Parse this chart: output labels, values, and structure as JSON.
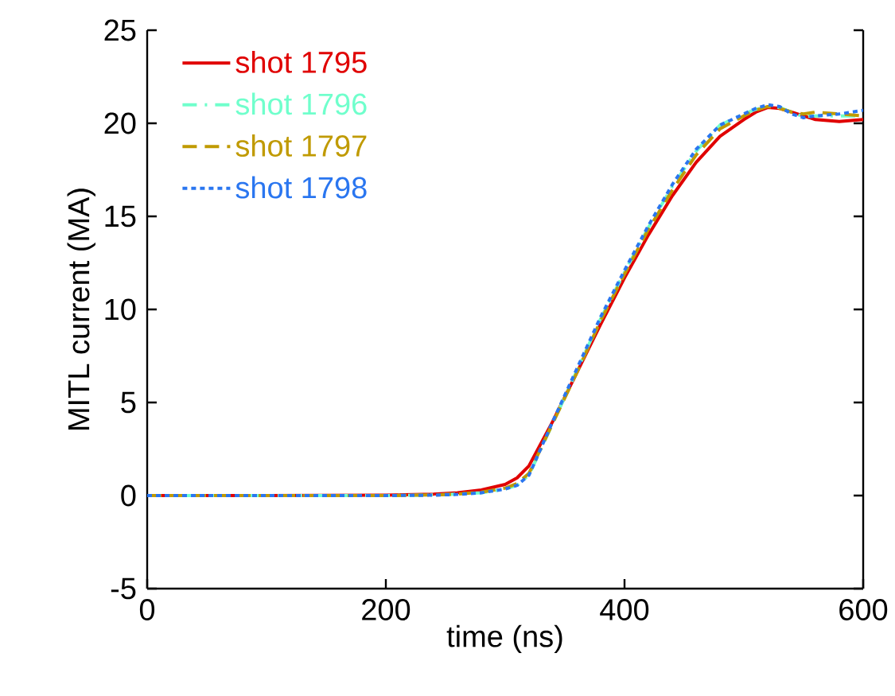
{
  "chart_data": {
    "type": "line",
    "xlabel": "time (ns)",
    "ylabel": "MITL current (MA)",
    "x": [
      0,
      100,
      200,
      240,
      260,
      280,
      300,
      310,
      320,
      340,
      360,
      380,
      400,
      420,
      440,
      460,
      480,
      500,
      510,
      520,
      530,
      540,
      550,
      560,
      580,
      600
    ],
    "series": [
      {
        "name": "shot 1795",
        "color": "#e00000",
        "line_style": "solid",
        "values": [
          0,
          0,
          0.02,
          0.08,
          0.15,
          0.3,
          0.6,
          0.95,
          1.6,
          4.0,
          6.6,
          9.2,
          11.7,
          14.0,
          16.1,
          17.9,
          19.3,
          20.2,
          20.6,
          20.85,
          20.8,
          20.6,
          20.4,
          20.2,
          20.1,
          20.2
        ]
      },
      {
        "name": "shot 1796",
        "color": "#70ffcc",
        "line_style": "dashdot",
        "values": [
          0,
          0,
          0,
          0.03,
          0.08,
          0.15,
          0.35,
          0.55,
          1.1,
          3.9,
          6.7,
          9.5,
          12.0,
          14.4,
          16.6,
          18.5,
          19.9,
          20.5,
          20.75,
          20.9,
          20.85,
          20.6,
          20.35,
          20.4,
          20.4,
          20.4
        ]
      },
      {
        "name": "shot 1797",
        "color": "#c09a00",
        "line_style": "dashed",
        "values": [
          0,
          0,
          0,
          0.03,
          0.08,
          0.18,
          0.4,
          0.65,
          1.2,
          3.9,
          6.6,
          9.4,
          11.9,
          14.3,
          16.4,
          18.3,
          19.7,
          20.4,
          20.7,
          20.9,
          20.8,
          20.6,
          20.5,
          20.6,
          20.5,
          20.4
        ]
      },
      {
        "name": "shot 1798",
        "color": "#2a76f0",
        "line_style": "dotted",
        "values": [
          0,
          0,
          0,
          0.02,
          0.06,
          0.15,
          0.35,
          0.55,
          1.1,
          4.0,
          6.8,
          9.6,
          12.1,
          14.5,
          16.7,
          18.6,
          19.9,
          20.5,
          20.8,
          21.0,
          20.9,
          20.5,
          20.3,
          20.4,
          20.5,
          20.7
        ]
      }
    ],
    "xlim": [
      0,
      600
    ],
    "xticks": [
      0,
      200,
      400,
      600
    ],
    "ylim": [
      -5,
      25
    ],
    "yticks": [
      -5,
      0,
      5,
      10,
      15,
      20,
      25
    ],
    "grid": false,
    "legend": "top left",
    "marker": "none"
  }
}
